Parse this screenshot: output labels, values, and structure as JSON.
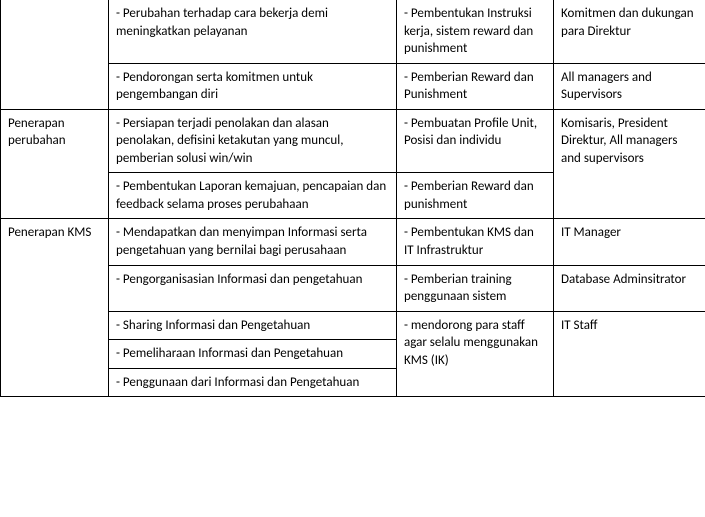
{
  "table": {
    "rows": [
      {
        "c1": "",
        "c1_rowspan": 2,
        "c1_top_border": false,
        "c2": "- Perubahan terhadap cara bekerja demi meningkatkan pelayanan",
        "c2_top_border": false,
        "c3": "- Pembentukan Instruksi kerja, sistem reward dan punishment",
        "c3_top_border": false,
        "c4": "Komitmen dan dukungan para Direktur",
        "c4_top_border": false
      },
      {
        "c2": "- Pendorongan serta komitmen untuk pengembangan diri",
        "c3": "- Pemberian Reward dan Punishment",
        "c4": "All managers and Supervisors"
      },
      {
        "c1": "Penerapan perubahan",
        "c1_rowspan": 2,
        "c2": "- Persiapan terjadi penolakan dan alasan penolakan, defisini ketakutan yang muncul, pemberian solusi win/win",
        "c3": "- Pembuatan Profile Unit, Posisi dan individu",
        "c4": "Komisaris, President Direktur, All managers and supervisors",
        "c4_rowspan": 2
      },
      {
        "c2": "- Pembentukan Laporan kemajuan, pencapaian dan feedback selama proses perubahaan",
        "c3": "- Pemberian Reward dan punishment"
      },
      {
        "c1": "Penerapan KMS",
        "c1_rowspan": 5,
        "c2": "- Mendapatkan dan menyimpan Informasi serta pengetahuan yang bernilai bagi perusahaan",
        "c3": "- Pembentukan KMS dan IT Infrastruktur",
        "c4": "IT Manager"
      },
      {
        "c2": "- Pengorganisasian Informasi dan pengetahuan",
        "c3": "- Pemberian training penggunaan sistem",
        "c4": "Database Adminsitrator"
      },
      {
        "c2": "- Sharing Informasi dan Pengetahuan",
        "c3": "- mendorong para staff agar selalu menggunakan KMS (IK)",
        "c3_rowspan": 3,
        "c4": "IT Staff",
        "c4_rowspan": 3
      },
      {
        "c2": "- Pemeliharaan Informasi dan Pengetahuan"
      },
      {
        "c2": "- Penggunaan dari Informasi dan Pengetahuan"
      }
    ]
  },
  "style": {
    "border_color": "#000000",
    "font_size": 13,
    "background": "#ffffff",
    "text_color": "#000000"
  }
}
